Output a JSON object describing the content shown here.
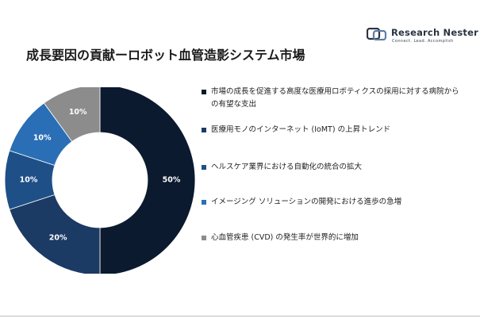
{
  "brand": {
    "name": "Research Nester",
    "tagline": "Connect. Lead. Accomplish"
  },
  "title": "成長要因の貢献ーロボット血管造影システム市場",
  "chart_data": {
    "type": "pie",
    "donut": true,
    "title": "成長要因の貢献ーロボット血管造影システム市場",
    "legend_position": "right",
    "slices": [
      {
        "label": "市場の成長を促進する高度な医療用ロボティクスの採用に対する病院からの有望な支出",
        "value": 50,
        "value_label": "50%",
        "color": "#0b1a2e",
        "label_color": "#ffffff"
      },
      {
        "label": "医療用モノのインターネット (IoMT) の上昇トレンド",
        "value": 20,
        "value_label": "20%",
        "color": "#1b3a64",
        "label_color": "#ffffff"
      },
      {
        "label": "ヘルスケア業界における自動化の統合の拡大",
        "value": 10,
        "value_label": "10%",
        "color": "#1e5087",
        "label_color": "#ffffff"
      },
      {
        "label": "イメージング ソリューションの開発における進歩の急増",
        "value": 10,
        "value_label": "10%",
        "color": "#2a6fb6",
        "label_color": "#ffffff"
      },
      {
        "label": "心血管疾患 (CVD) の発生率が世界的に増加",
        "value": 10,
        "value_label": "10%",
        "color": "#8c8c8c",
        "label_color": "#ffffff"
      }
    ]
  }
}
